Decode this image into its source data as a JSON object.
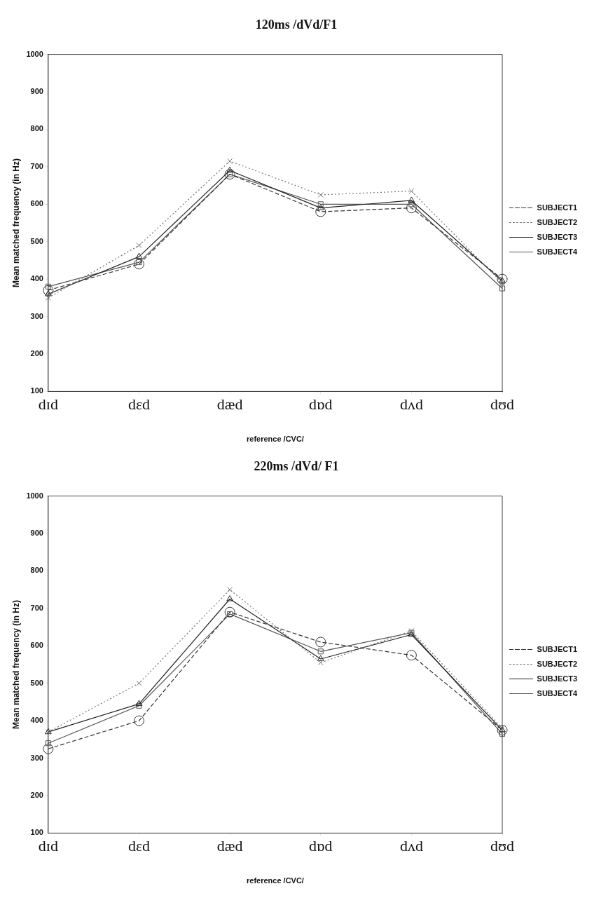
{
  "chart_data": [
    {
      "type": "line",
      "title": "120ms /dVd/F1",
      "xlabel": "reference /CVC/",
      "ylabel": "Mean matched frequency (in Hz)",
      "categories": [
        "dɪd",
        "dɛd",
        "dæd",
        "dɒd",
        "dʌd",
        "dʊd"
      ],
      "ylim": [
        100,
        1000
      ],
      "yticks": [
        100,
        200,
        300,
        400,
        500,
        600,
        700,
        800,
        900,
        1000
      ],
      "grid": false,
      "legend": "right",
      "series": [
        {
          "name": "SUBJECT1",
          "color": "#333333",
          "marker": "circle",
          "line_style": "dashed",
          "values": [
            370,
            440,
            680,
            580,
            590,
            400
          ]
        },
        {
          "name": "SUBJECT2",
          "color": "#777777",
          "marker": "cross",
          "line_style": "dotted",
          "values": [
            350,
            490,
            715,
            625,
            635,
            390
          ]
        },
        {
          "name": "SUBJECT3",
          "color": "#222222",
          "marker": "triangle",
          "line_style": "solid",
          "values": [
            360,
            460,
            690,
            590,
            610,
            395
          ]
        },
        {
          "name": "SUBJECT4",
          "color": "#555555",
          "marker": "square",
          "line_style": "solid",
          "values": [
            380,
            445,
            680,
            600,
            600,
            375
          ]
        }
      ]
    },
    {
      "type": "line",
      "title": "220ms /dVd/ F1",
      "xlabel": "reference /CVC/",
      "ylabel": "Mean matched frequency (in Hz)",
      "categories": [
        "dɪd",
        "dɛd",
        "dæd",
        "dɒd",
        "dʌd",
        "dʊd"
      ],
      "ylim": [
        100,
        1000
      ],
      "yticks": [
        100,
        200,
        300,
        400,
        500,
        600,
        700,
        800,
        900,
        1000
      ],
      "grid": false,
      "legend": "right",
      "series": [
        {
          "name": "SUBJECT1",
          "color": "#333333",
          "marker": "circle",
          "line_style": "dashed",
          "values": [
            325,
            400,
            690,
            610,
            575,
            375
          ]
        },
        {
          "name": "SUBJECT2",
          "color": "#777777",
          "marker": "cross",
          "line_style": "dotted",
          "values": [
            370,
            500,
            750,
            555,
            640,
            380
          ]
        },
        {
          "name": "SUBJECT3",
          "color": "#222222",
          "marker": "triangle",
          "line_style": "solid",
          "values": [
            370,
            445,
            725,
            565,
            630,
            375
          ]
        },
        {
          "name": "SUBJECT4",
          "color": "#555555",
          "marker": "square",
          "line_style": "solid",
          "values": [
            340,
            440,
            685,
            585,
            635,
            365
          ]
        }
      ]
    }
  ]
}
